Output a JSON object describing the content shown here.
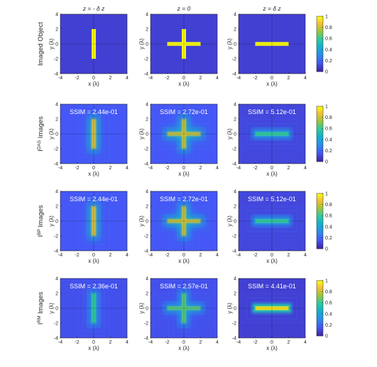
{
  "figure": {
    "column_titles": [
      "z = - δ z",
      "z = 0",
      "z = δ z"
    ],
    "row_labels": [
      {
        "main": "Imaged Object",
        "sup": ""
      },
      {
        "main": "I",
        "sup": "DAS",
        "tail": " Images"
      },
      {
        "main": "I",
        "sup": "BP",
        "tail": " Images"
      },
      {
        "main": "I",
        "sup": "RM",
        "tail": " Images"
      }
    ],
    "xlabel": "x (λ)",
    "ylabel": "y (λ)",
    "ssim_prefix": "SSIM = ",
    "ssim": [
      [],
      [
        "2.44e-01",
        "2.72e-01",
        "5.12e-01"
      ],
      [
        "2.44e-01",
        "2.72e-01",
        "5.12e-01"
      ],
      [
        "2.36e-01",
        "2.57e-01",
        "4.41e-01"
      ]
    ]
  },
  "chart_data": {
    "type": "heatmap",
    "layout": "4 rows x 3 columns of image panels with one colorbar per row",
    "colormap": "parula",
    "xlim": [
      -4,
      4
    ],
    "ylim": [
      -4,
      4
    ],
    "xticks": [
      -4,
      -2,
      0,
      2,
      4
    ],
    "yticks": [
      -4,
      -2,
      0,
      2,
      4
    ],
    "colorbar": {
      "limits": [
        0,
        1
      ],
      "ticks": [
        0,
        0.2,
        0.4,
        0.6,
        0.8,
        1
      ],
      "tick_labels": [
        "0",
        "0.2",
        "0.4",
        "0.6",
        "0.8",
        "1"
      ]
    },
    "objects": [
      {
        "column": "z = - δ z",
        "shape": "vertical bar",
        "x_range": [
          -0.25,
          0.25
        ],
        "y_range": [
          -2,
          2
        ],
        "value": 1
      },
      {
        "column": "z = 0",
        "shape": "cross",
        "arms": [
          {
            "x_range": [
              -2,
              2
            ],
            "y_range": [
              -0.25,
              0.25
            ]
          },
          {
            "x_range": [
              -0.25,
              0.25
            ],
            "y_range": [
              -2,
              2
            ]
          }
        ],
        "value": 1
      },
      {
        "column": "z = δ z",
        "shape": "horizontal bar",
        "x_range": [
          -2,
          2
        ],
        "y_range": [
          -0.25,
          0.25
        ],
        "value": 1
      }
    ],
    "rows": [
      {
        "label": "Imaged Object",
        "blur": [
          0,
          0,
          0
        ],
        "peak": [
          1,
          1,
          1
        ],
        "background": [
          0.08,
          0.08,
          0.08
        ]
      },
      {
        "label": "I DAS Images",
        "blur": [
          0.55,
          0.55,
          0.3
        ],
        "peak": [
          0.85,
          0.82,
          0.6
        ],
        "background": [
          0.15,
          0.15,
          0.1
        ]
      },
      {
        "label": "I BP Images",
        "blur": [
          0.55,
          0.55,
          0.3
        ],
        "peak": [
          0.85,
          0.82,
          0.6
        ],
        "background": [
          0.15,
          0.15,
          0.1
        ]
      },
      {
        "label": "I RM Images",
        "blur": [
          0.45,
          0.45,
          0.2
        ],
        "peak": [
          0.6,
          0.65,
          0.95
        ],
        "background": [
          0.13,
          0.13,
          0.08
        ]
      }
    ]
  }
}
